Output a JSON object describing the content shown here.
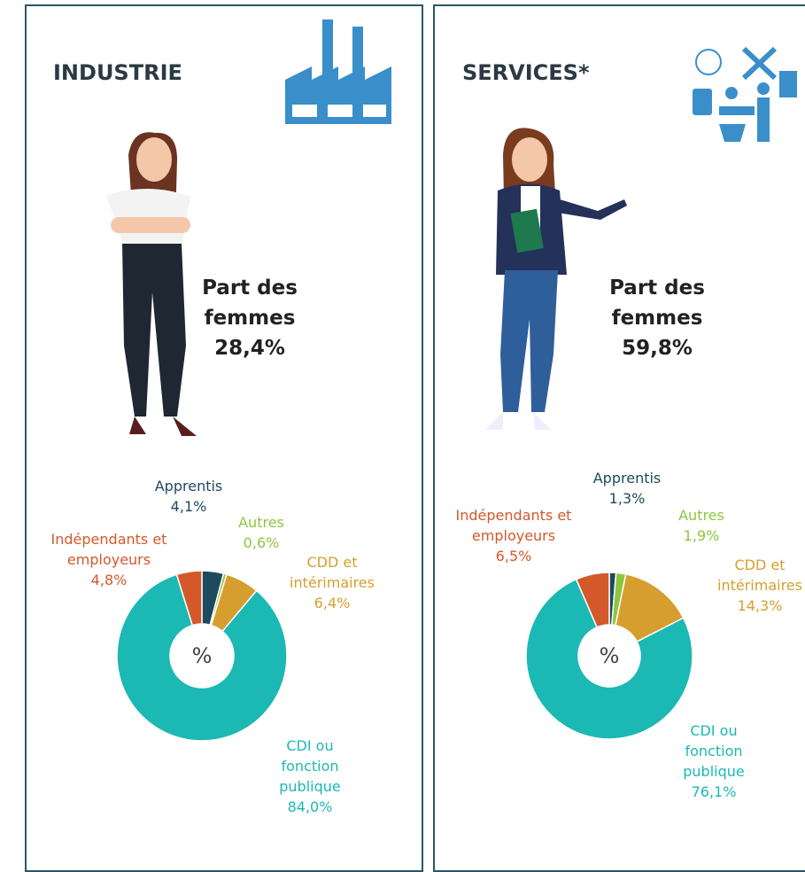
{
  "chart_data": [
    {
      "type": "pie",
      "title": "INDUSTRIE",
      "annotations": [
        "Part des femmes",
        "28,4%"
      ],
      "center_label": "%",
      "categories": [
        "Apprentis",
        "Autres",
        "CDD et intérimaires",
        "CDI ou fonction publique",
        "Indépendants et employeurs"
      ],
      "values": [
        4.1,
        0.6,
        6.4,
        84.0,
        4.8
      ],
      "value_labels": [
        "4,1%",
        "0,6%",
        "6,4%",
        "84,0%",
        "4,8%"
      ],
      "colors": [
        "#1d4a5e",
        "#8cc63f",
        "#d69e2e",
        "#1cb8b4",
        "#d4582a"
      ]
    },
    {
      "type": "pie",
      "title": "SERVICES*",
      "annotations": [
        "Part des femmes",
        "59,8%"
      ],
      "center_label": "%",
      "categories": [
        "Apprentis",
        "Autres",
        "CDD et intérimaires",
        "CDI ou fonction publique",
        "Indépendants et employeurs"
      ],
      "values": [
        1.3,
        1.9,
        14.3,
        76.1,
        6.5
      ],
      "value_labels": [
        "1,3%",
        "1,9%",
        "14,3%",
        "76,1%",
        "6,5%"
      ],
      "colors": [
        "#1d4a5e",
        "#8cc63f",
        "#d69e2e",
        "#1cb8b4",
        "#d4582a"
      ]
    }
  ]
}
